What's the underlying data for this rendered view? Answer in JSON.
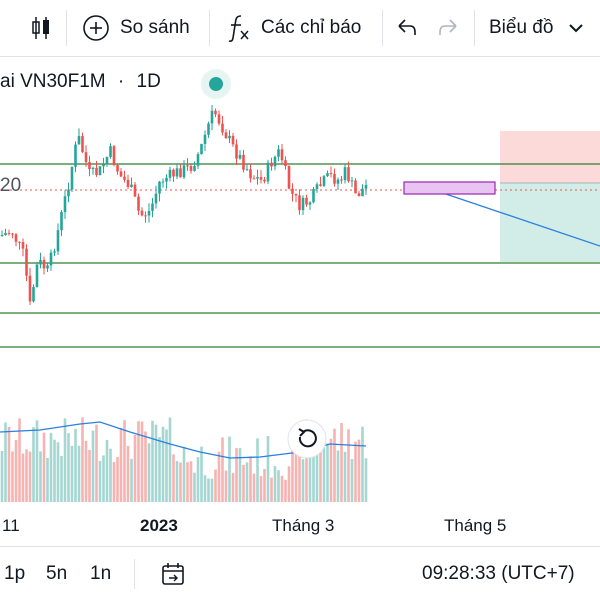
{
  "toolbar": {
    "compare_label": "So sánh",
    "indicators_label": "Các chỉ báo",
    "chart_type_label": "Biểu đồ"
  },
  "legend": {
    "symbol_partial": "ai VN30F1M",
    "interval": "1D",
    "price_partial": "20"
  },
  "x_axis": {
    "tick_nov": "11",
    "tick_2023": "2023",
    "tick_mar": "Tháng 3",
    "tick_may": "Tháng 5"
  },
  "bottom": {
    "range_1": "1p",
    "range_2": "5n",
    "range_3": "1n",
    "clock": "09:28:33 (UTC+7)"
  },
  "colors": {
    "up": "#26a69a",
    "down": "#ef5350",
    "volume_up": "#a5d6d1",
    "volume_down": "#f5b3b1",
    "line": "#2a7fe0",
    "hline": "#2e7d32",
    "status_dot": "#26a69a"
  },
  "chart_data": {
    "type": "candlestick",
    "x_ticks": [
      "11",
      "2023",
      "Tháng 3",
      "Tháng 5"
    ]
  }
}
